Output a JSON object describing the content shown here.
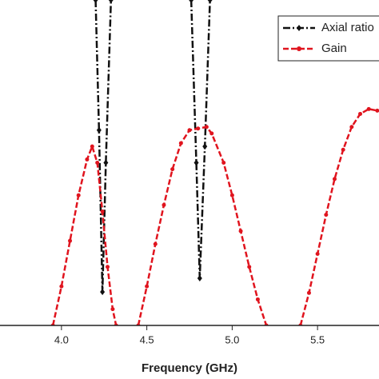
{
  "chart_data": {
    "type": "line",
    "xlabel": "Frequency (GHz)",
    "xlim": [
      3.64,
      5.86
    ],
    "ylim": [
      0,
      100
    ],
    "xticks": [
      {
        "value": 4.0,
        "label": "4.0"
      },
      4.5,
      {
        "value": 5.0,
        "label": "5.0"
      },
      5.5
    ],
    "legend": "upper right",
    "series": [
      {
        "name": "Axial ratio",
        "color": "#111111",
        "marker": "diamond",
        "x": [
          4.2,
          4.22,
          4.24,
          4.26,
          4.29,
          4.5,
          4.76,
          4.79,
          4.81,
          4.84,
          4.87
        ],
        "values": [
          100,
          60,
          10.3,
          50,
          100,
          null,
          100,
          50,
          14.5,
          55,
          100
        ]
      },
      {
        "name": "Gain",
        "color": "#e0141e",
        "marker": "circle",
        "x": [
          3.95,
          4.0,
          4.05,
          4.1,
          4.15,
          4.18,
          4.21,
          4.24,
          4.27,
          4.3,
          4.32,
          4.4,
          4.45,
          4.5,
          4.55,
          4.6,
          4.65,
          4.7,
          4.75,
          4.8,
          4.85,
          4.88,
          4.95,
          5.0,
          5.05,
          5.1,
          5.15,
          5.2,
          5.3,
          5.4,
          5.45,
          5.5,
          5.55,
          5.6,
          5.65,
          5.7,
          5.75,
          5.8,
          5.85
        ],
        "values": [
          0,
          12,
          26,
          40,
          51,
          55,
          50,
          35,
          18,
          5,
          0,
          null,
          0,
          12,
          25,
          37,
          48,
          56,
          60,
          60.5,
          61,
          59,
          50,
          40,
          29,
          18,
          8,
          0,
          null,
          0,
          10,
          22,
          34,
          45,
          54,
          61,
          65,
          66.5,
          66
        ]
      }
    ]
  }
}
